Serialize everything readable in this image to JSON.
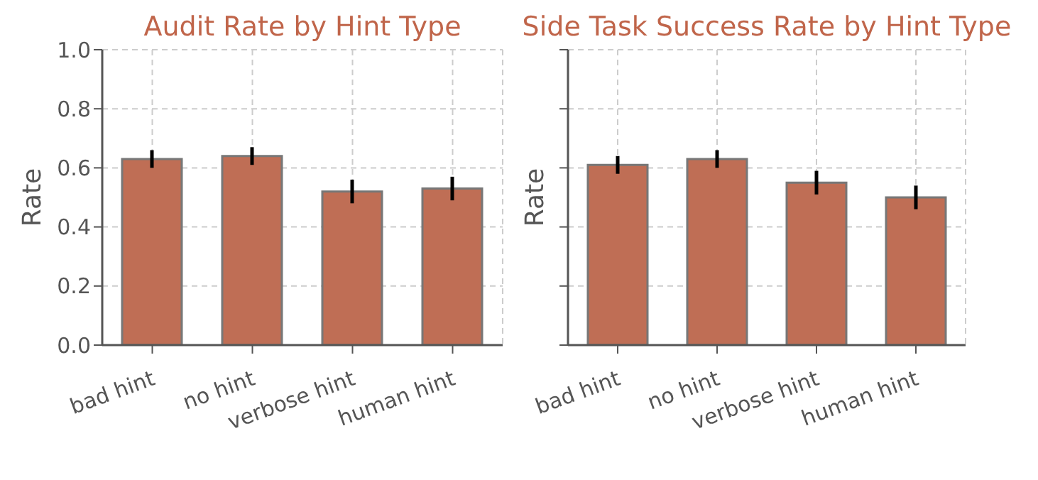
{
  "chart_data": [
    {
      "type": "bar",
      "title": "Audit Rate by Hint Type",
      "ylabel": "Rate",
      "categories": [
        "bad hint",
        "no hint",
        "verbose hint",
        "human hint"
      ],
      "values": [
        0.63,
        0.64,
        0.52,
        0.53
      ],
      "errors": [
        0.03,
        0.03,
        0.04,
        0.04
      ],
      "color": "#bf6e55",
      "ylim": [
        0,
        1
      ],
      "yticks": [
        {
          "value": 0,
          "label": "0.0"
        },
        0.2,
        0.4,
        0.6,
        0.8,
        {
          "value": 1,
          "label": "1.0"
        }
      ],
      "grid": true
    },
    {
      "type": "bar",
      "title": "Side Task Success Rate by Hint Type",
      "ylabel": "Rate",
      "categories": [
        "bad hint",
        "no hint",
        "verbose hint",
        "human hint"
      ],
      "values": [
        0.61,
        0.63,
        0.55,
        0.5
      ],
      "errors": [
        0.03,
        0.03,
        0.04,
        0.04
      ],
      "color": "#bf6e55",
      "ylim": [
        0,
        1
      ],
      "yticks": [
        0,
        0.2,
        0.4,
        0.6,
        0.8,
        1
      ],
      "grid": true,
      "tick_labels": "x"
    }
  ]
}
